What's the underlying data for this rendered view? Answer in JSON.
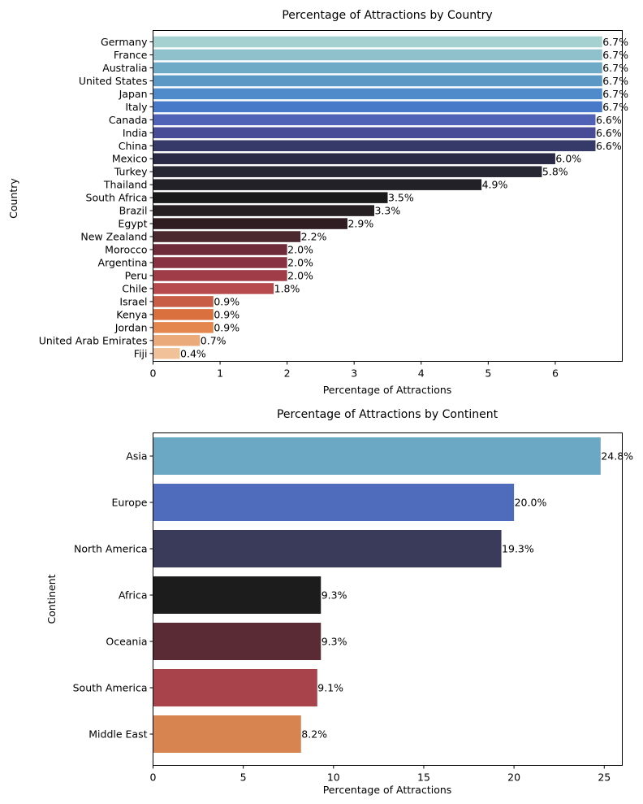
{
  "chart_data": [
    {
      "type": "bar",
      "orientation": "horizontal",
      "title": "Percentage of Attractions by Country",
      "xlabel": "Percentage of Attractions",
      "ylabel": "Country",
      "xlim": [
        0,
        7.0
      ],
      "xticks": [
        "0",
        "1",
        "2",
        "3",
        "4",
        "5",
        "6"
      ],
      "grid": false,
      "categories": [
        "Germany",
        "France",
        "Australia",
        "United States",
        "Japan",
        "Italy",
        "Canada",
        "India",
        "China",
        "Mexico",
        "Turkey",
        "Thailand",
        "South Africa",
        "Brazil",
        "Egypt",
        "New Zealand",
        "Morocco",
        "Argentina",
        "Peru",
        "Chile",
        "Israel",
        "Kenya",
        "Jordan",
        "United Arab Emirates",
        "Fiji"
      ],
      "values": [
        6.7,
        6.7,
        6.7,
        6.7,
        6.7,
        6.7,
        6.6,
        6.6,
        6.6,
        6.0,
        5.8,
        4.9,
        3.5,
        3.3,
        2.9,
        2.2,
        2.0,
        2.0,
        2.0,
        1.8,
        0.9,
        0.9,
        0.9,
        0.7,
        0.4
      ],
      "data_labels": [
        "6.7%",
        "6.7%",
        "6.7%",
        "6.7%",
        "6.7%",
        "6.7%",
        "6.6%",
        "6.6%",
        "6.6%",
        "6.0%",
        "5.8%",
        "4.9%",
        "3.5%",
        "3.3%",
        "2.9%",
        "2.2%",
        "2.0%",
        "2.0%",
        "2.0%",
        "1.8%",
        "0.9%",
        "0.9%",
        "0.9%",
        "0.7%",
        "0.4%"
      ],
      "colors": [
        "#a5d1d1",
        "#8fc1cd",
        "#6ea9c6",
        "#5b98c5",
        "#4f8acb",
        "#4879c8",
        "#4f62b5",
        "#484b95",
        "#363a68",
        "#2b2a46",
        "#272633",
        "#222128",
        "#1b1b1b",
        "#262022",
        "#2f1d22",
        "#4b2730",
        "#6f2b3a",
        "#893342",
        "#a03c47",
        "#b74a4d",
        "#c85e45",
        "#d9703d",
        "#e3874f",
        "#ebaa7a",
        "#f1c29a"
      ]
    },
    {
      "type": "bar",
      "orientation": "horizontal",
      "title": "Percentage of Attractions by Continent",
      "xlabel": "Percentage of Attractions",
      "ylabel": "Continent",
      "xlim": [
        0,
        26.0
      ],
      "xticks": [
        "0",
        "5",
        "10",
        "15",
        "20",
        "25"
      ],
      "grid": false,
      "categories": [
        "Asia",
        "Europe",
        "North America",
        "Africa",
        "Oceania",
        "South America",
        "Middle East"
      ],
      "values": [
        24.8,
        20.0,
        19.3,
        9.3,
        9.3,
        9.1,
        8.2
      ],
      "data_labels": [
        "24.8%",
        "20.0%",
        "19.3%",
        "9.3%",
        "9.3%",
        "9.1%",
        "8.2%"
      ],
      "colors": [
        "#6aa8c4",
        "#4e6cbb",
        "#3a3a5a",
        "#1c1c1c",
        "#5a2a35",
        "#a8424b",
        "#d88450"
      ]
    }
  ]
}
